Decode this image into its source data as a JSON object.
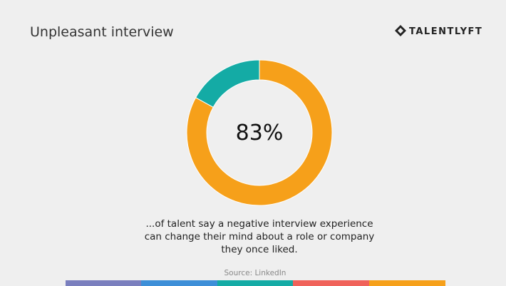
{
  "chart_data": {
    "type": "donut",
    "title": "Unpleasant interview",
    "logo": "TALENTLYFT",
    "values": [
      83,
      17
    ],
    "colors": [
      "#f6a01a",
      "#14aba5"
    ],
    "value_labels": [
      "83%",
      null
    ],
    "caption": [
      "...of talent say a negative interview experience",
      "can change their mind about a role or company",
      "they once liked."
    ],
    "source": "Source: LinkedIn"
  }
}
